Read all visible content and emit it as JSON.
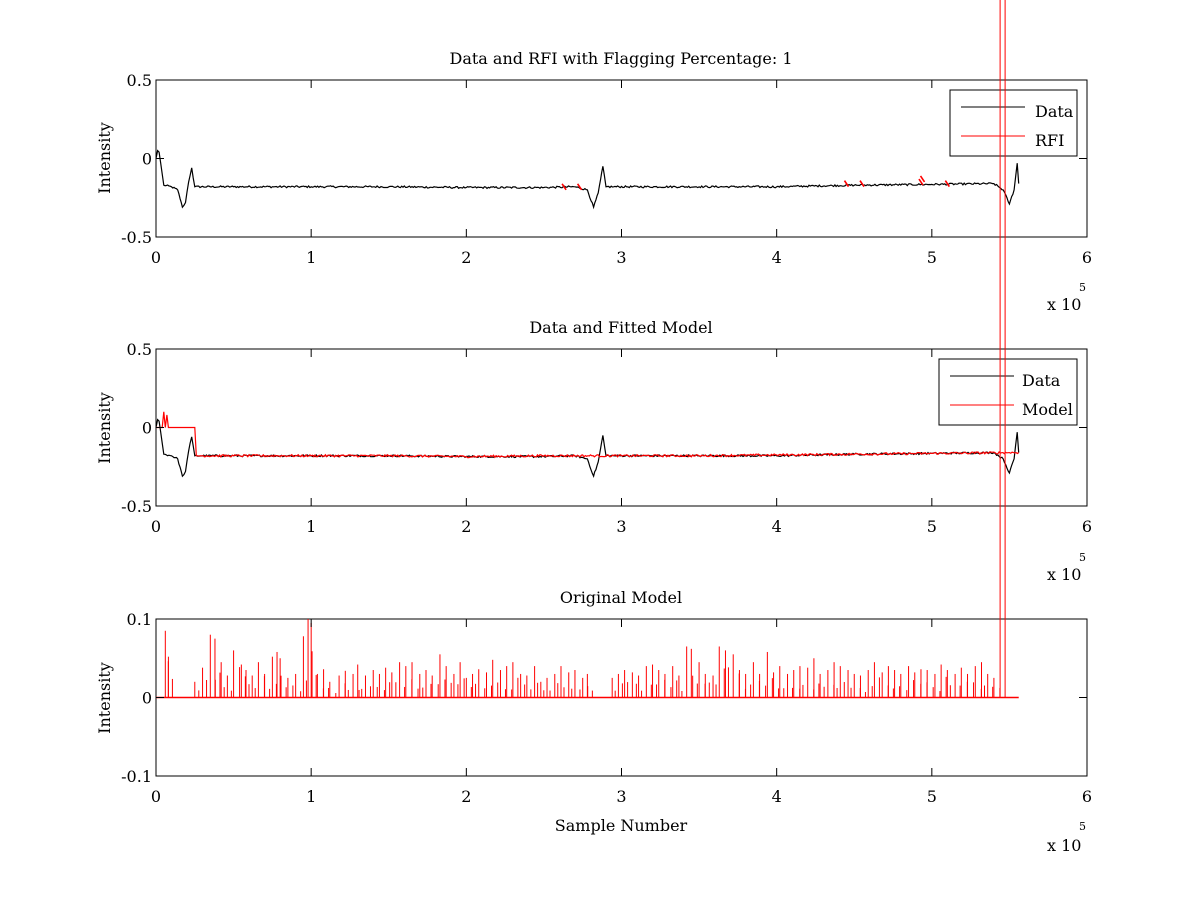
{
  "chart_data": [
    {
      "type": "line",
      "title": "Data and RFI with Flagging Percentage: 1",
      "xlabel": "",
      "ylabel": "Intensity",
      "xlim": [
        0,
        6
      ],
      "ylim": [
        -0.5,
        0.5
      ],
      "x_ticks": [
        "0",
        "1",
        "2",
        "3",
        "4",
        "5",
        "6"
      ],
      "y_ticks": [
        "-0.5",
        "0",
        "0.5"
      ],
      "x_exponent": {
        "base": "x 10",
        "power": "5"
      },
      "grid": false,
      "legend": "top-right",
      "series": [
        {
          "name": "Data",
          "color": "#000000",
          "x": [
            0,
            0.01,
            0.02,
            0.03,
            0.05,
            0.1,
            0.14,
            0.17,
            0.19,
            0.21,
            0.23,
            0.25,
            0.5,
            1.0,
            1.5,
            2.0,
            2.5,
            2.7,
            2.78,
            2.82,
            2.85,
            2.88,
            2.9,
            2.95,
            3.5,
            4.0,
            4.5,
            5.0,
            5.4,
            5.46,
            5.5,
            5.53,
            5.55,
            5.56
          ],
          "y": [
            0.0,
            0.05,
            0.04,
            -0.03,
            -0.17,
            -0.18,
            -0.2,
            -0.31,
            -0.28,
            -0.15,
            -0.06,
            -0.18,
            -0.18,
            -0.18,
            -0.18,
            -0.185,
            -0.185,
            -0.18,
            -0.2,
            -0.31,
            -0.22,
            -0.05,
            -0.18,
            -0.18,
            -0.18,
            -0.18,
            -0.17,
            -0.165,
            -0.16,
            -0.2,
            -0.29,
            -0.2,
            -0.03,
            -0.16
          ]
        },
        {
          "name": "RFI",
          "color": "#ff0000",
          "x": [
            2.63,
            2.73,
            4.45,
            4.55,
            4.93,
            4.94,
            5.1
          ],
          "y": [
            -0.18,
            -0.18,
            -0.16,
            -0.16,
            -0.15,
            -0.13,
            -0.16
          ]
        }
      ]
    },
    {
      "type": "line",
      "title": "Data and Fitted Model",
      "xlabel": "",
      "ylabel": "Intensity",
      "xlim": [
        0,
        6
      ],
      "ylim": [
        -0.5,
        0.5
      ],
      "x_ticks": [
        "0",
        "1",
        "2",
        "3",
        "4",
        "5",
        "6"
      ],
      "y_ticks": [
        "-0.5",
        "0",
        "0.5"
      ],
      "x_exponent": {
        "base": "x 10",
        "power": "5"
      },
      "grid": false,
      "legend": "top-right",
      "series": [
        {
          "name": "Data",
          "color": "#000000",
          "x": [
            0,
            0.01,
            0.02,
            0.03,
            0.05,
            0.1,
            0.14,
            0.17,
            0.19,
            0.21,
            0.23,
            0.25,
            0.5,
            1.0,
            1.5,
            2.0,
            2.5,
            2.7,
            2.78,
            2.82,
            2.85,
            2.88,
            2.9,
            2.95,
            3.5,
            4.0,
            4.5,
            5.0,
            5.4,
            5.46,
            5.5,
            5.53,
            5.55,
            5.56
          ],
          "y": [
            0.0,
            0.05,
            0.04,
            -0.03,
            -0.17,
            -0.18,
            -0.2,
            -0.31,
            -0.28,
            -0.15,
            -0.06,
            -0.18,
            -0.18,
            -0.18,
            -0.18,
            -0.185,
            -0.185,
            -0.18,
            -0.2,
            -0.31,
            -0.22,
            -0.05,
            -0.18,
            -0.18,
            -0.18,
            -0.18,
            -0.17,
            -0.165,
            -0.16,
            -0.2,
            -0.29,
            -0.2,
            -0.03,
            -0.16
          ]
        },
        {
          "name": "Model",
          "color": "#ff0000",
          "x": [
            0,
            0.04,
            0.05,
            0.06,
            0.07,
            0.08,
            0.1,
            0.25,
            0.26,
            0.27,
            0.5,
            1.0,
            1.5,
            2.0,
            2.5,
            3.0,
            3.5,
            4.0,
            4.5,
            5.0,
            5.5,
            5.56
          ],
          "y": [
            0.0,
            0.0,
            0.1,
            0.0,
            0.08,
            0.0,
            0.0,
            0.0,
            -0.18,
            -0.18,
            -0.18,
            -0.18,
            -0.18,
            -0.185,
            -0.18,
            -0.18,
            -0.18,
            -0.175,
            -0.17,
            -0.165,
            -0.16,
            -0.16
          ]
        }
      ]
    },
    {
      "type": "line",
      "title": "Original Model",
      "xlabel": "Sample Number",
      "ylabel": "Intensity",
      "xlim": [
        0,
        6
      ],
      "ylim": [
        -0.1,
        0.1
      ],
      "x_ticks": [
        "0",
        "1",
        "2",
        "3",
        "4",
        "5",
        "6"
      ],
      "y_ticks": [
        "-0.1",
        "0",
        "0.1"
      ],
      "x_exponent": {
        "base": "x 10",
        "power": "5"
      },
      "grid": false,
      "legend": "none",
      "baseline": 0,
      "x_end": 5.56,
      "series": [
        {
          "color": "#ff0000",
          "spikes_x": [
            0.06,
            0.08,
            0.25,
            0.3,
            0.35,
            0.38,
            0.42,
            0.46,
            0.5,
            0.55,
            0.58,
            0.62,
            0.66,
            0.7,
            0.75,
            0.78,
            0.8,
            0.85,
            0.9,
            0.95,
            0.98,
            1.0,
            1.04,
            1.08,
            1.12,
            1.18,
            1.22,
            1.27,
            1.3,
            1.35,
            1.4,
            1.44,
            1.48,
            1.52,
            1.57,
            1.61,
            1.65,
            1.7,
            1.74,
            1.78,
            1.83,
            1.87,
            1.92,
            1.96,
            2.0,
            2.04,
            2.08,
            2.13,
            2.17,
            2.22,
            2.26,
            2.3,
            2.35,
            2.39,
            2.44,
            2.48,
            2.52,
            2.57,
            2.61,
            2.66,
            2.7,
            2.75,
            2.78,
            2.94,
            2.98,
            3.02,
            3.07,
            3.11,
            3.16,
            3.2,
            3.24,
            3.28,
            3.33,
            3.37,
            3.42,
            3.45,
            3.5,
            3.54,
            3.59,
            3.63,
            3.67,
            3.72,
            3.76,
            3.8,
            3.85,
            3.89,
            3.94,
            3.98,
            4.02,
            4.07,
            4.11,
            4.15,
            4.2,
            4.24,
            4.28,
            4.33,
            4.37,
            4.41,
            4.46,
            4.5,
            4.54,
            4.59,
            4.63,
            4.68,
            4.72,
            4.76,
            4.8,
            4.85,
            4.89,
            4.93,
            4.97,
            5.02,
            5.06,
            5.1,
            5.15,
            5.19,
            5.23,
            5.28,
            5.32,
            5.36,
            5.4,
            5.44
          ],
          "spikes_y": [
            0.085,
            0.052,
            0.02,
            0.038,
            0.08,
            0.075,
            0.045,
            0.028,
            0.06,
            0.042,
            0.035,
            0.028,
            0.045,
            0.03,
            0.052,
            0.058,
            0.05,
            0.025,
            0.03,
            0.078,
            0.1,
            0.095,
            0.03,
            0.036,
            0.02,
            0.028,
            0.034,
            0.03,
            0.042,
            0.028,
            0.035,
            0.03,
            0.038,
            0.032,
            0.045,
            0.04,
            0.045,
            0.03,
            0.035,
            0.028,
            0.055,
            0.04,
            0.03,
            0.045,
            0.025,
            0.03,
            0.036,
            0.032,
            0.048,
            0.035,
            0.04,
            0.045,
            0.03,
            0.028,
            0.04,
            0.02,
            0.025,
            0.03,
            0.04,
            0.032,
            0.035,
            0.025,
            0.03,
            0.025,
            0.03,
            0.035,
            0.032,
            0.028,
            0.04,
            0.042,
            0.035,
            0.03,
            0.04,
            0.028,
            0.065,
            0.062,
            0.045,
            0.03,
            0.028,
            0.065,
            0.06,
            0.055,
            0.035,
            0.03,
            0.045,
            0.03,
            0.058,
            0.032,
            0.04,
            0.03,
            0.035,
            0.04,
            0.038,
            0.05,
            0.03,
            0.035,
            0.045,
            0.04,
            0.035,
            0.03,
            0.028,
            0.035,
            0.045,
            0.032,
            0.04,
            0.035,
            0.03,
            0.04,
            0.032,
            0.036,
            0.035,
            0.03,
            0.042,
            0.035,
            0.03,
            0.038,
            0.03,
            0.04,
            0.045,
            0.03,
            0.025
          ]
        }
      ]
    }
  ]
}
